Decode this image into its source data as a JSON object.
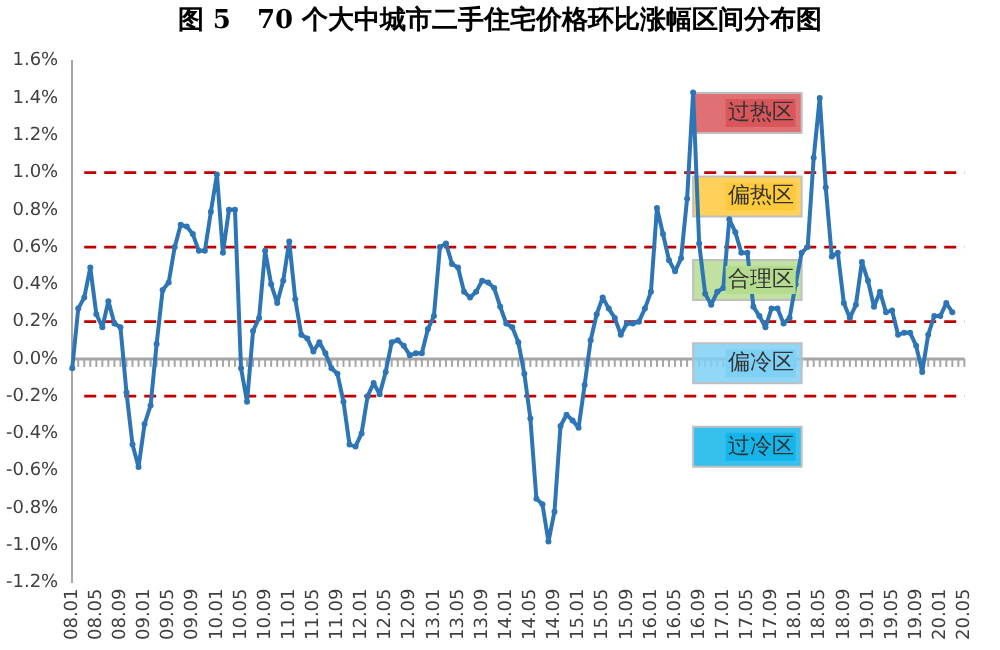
{
  "chart_data": {
    "type": "line",
    "title": "图 5　70 个大中城市二手住宅价格环比涨幅区间分布图",
    "categories": [
      "08.01",
      null,
      null,
      null,
      "08.05",
      null,
      null,
      null,
      "08.09",
      null,
      null,
      null,
      "09.01",
      null,
      null,
      null,
      "09.05",
      null,
      null,
      null,
      "09.09",
      null,
      null,
      null,
      "10.01",
      null,
      null,
      null,
      "10.05",
      null,
      null,
      null,
      "10.09",
      null,
      null,
      null,
      "11.01",
      null,
      null,
      null,
      "11.05",
      null,
      null,
      null,
      "11.09",
      null,
      null,
      null,
      "12.01",
      null,
      null,
      null,
      "12.05",
      null,
      null,
      null,
      "12.09",
      null,
      null,
      null,
      "13.01",
      null,
      null,
      null,
      "13.05",
      null,
      null,
      null,
      "13.09",
      null,
      null,
      null,
      "14.01",
      null,
      null,
      null,
      "14.05",
      null,
      null,
      null,
      "14.09",
      null,
      null,
      null,
      "15.01",
      null,
      null,
      null,
      "15.05",
      null,
      null,
      null,
      "15.09",
      null,
      null,
      null,
      "16.01",
      null,
      null,
      null,
      "16.05",
      null,
      null,
      null,
      "16.09",
      null,
      null,
      null,
      "17.01",
      null,
      null,
      null,
      "17.05",
      null,
      null,
      null,
      "17.09",
      null,
      null,
      null,
      "18.01",
      null,
      null,
      null,
      "18.05",
      null,
      null,
      null,
      "18.09",
      null,
      null,
      null,
      "19.01",
      null,
      null,
      null,
      "19.05",
      null,
      null,
      null,
      "19.09",
      null,
      null,
      null,
      "20.01",
      null,
      null,
      null,
      "20.05"
    ],
    "series": [
      {
        "color": "#2e75b6",
        "values": [
          -0.05,
          0.27,
          0.33,
          0.49,
          0.24,
          0.17,
          0.31,
          0.19,
          0.17,
          -0.18,
          -0.46,
          -0.58,
          -0.35,
          -0.25,
          0.08,
          0.37,
          0.41,
          0.6,
          0.72,
          0.71,
          0.67,
          0.58,
          0.58,
          0.79,
          0.99,
          0.57,
          0.8,
          0.8,
          -0.05,
          -0.23,
          0.15,
          0.22,
          0.58,
          0.4,
          0.3,
          0.42,
          0.63,
          0.32,
          0.13,
          0.11,
          0.04,
          0.09,
          0.03,
          -0.05,
          -0.08,
          -0.23,
          -0.46,
          -0.47,
          -0.4,
          -0.2,
          -0.13,
          -0.19,
          -0.07,
          0.09,
          0.1,
          0.07,
          0.02,
          0.03,
          0.03,
          0.16,
          0.23,
          0.6,
          0.62,
          0.51,
          0.49,
          0.36,
          0.33,
          0.36,
          0.42,
          0.41,
          0.38,
          0.28,
          0.19,
          0.17,
          0.09,
          -0.08,
          -0.32,
          -0.75,
          -0.78,
          -0.98,
          -0.82,
          -0.36,
          -0.3,
          -0.33,
          -0.37,
          -0.14,
          0.1,
          0.24,
          0.33,
          0.27,
          0.22,
          0.13,
          0.19,
          0.19,
          0.2,
          0.27,
          0.36,
          0.81,
          0.67,
          0.53,
          0.47,
          0.54,
          0.86,
          1.43,
          0.62,
          0.35,
          0.29,
          0.36,
          0.38,
          0.75,
          0.68,
          0.57,
          0.57,
          0.28,
          0.23,
          0.17,
          0.27,
          0.27,
          0.19,
          0.22,
          0.4,
          0.57,
          0.6,
          1.08,
          1.4,
          0.92,
          0.55,
          0.57,
          0.3,
          0.22,
          0.29,
          0.52,
          0.42,
          0.28,
          0.36,
          0.25,
          0.26,
          0.13,
          0.14,
          0.14,
          0.07,
          -0.07,
          0.13,
          0.23,
          0.23,
          0.3,
          0.25,
          null,
          null
        ]
      }
    ],
    "ylim": [
      -1.2,
      1.6
    ],
    "yticks": [
      {
        "value": -1.2,
        "label": "-1.2%"
      },
      {
        "value": -1.0,
        "label": "-1.0%"
      },
      {
        "value": -0.8,
        "label": "-0.8%"
      },
      {
        "value": -0.6,
        "label": "-0.6%"
      },
      {
        "value": -0.4,
        "label": "-0.4%"
      },
      {
        "value": -0.2,
        "label": "-0.2%"
      },
      {
        "value": 0,
        "label": "0.0%"
      },
      {
        "value": 0.2,
        "label": "0.2%"
      },
      {
        "value": 0.4,
        "label": "0.4%"
      },
      {
        "value": 0.6,
        "label": "0.6%"
      },
      {
        "value": 0.8,
        "label": "0.8%"
      },
      {
        "value": 1.0,
        "label": "1.0%"
      },
      {
        "value": 1.2,
        "label": "1.2%"
      },
      {
        "value": 1.4,
        "label": "1.4%"
      },
      {
        "value": 1.6,
        "label": "1.6%"
      }
    ],
    "ref_lines": [
      {
        "axis": "y",
        "value": 1.0,
        "color": "#c00000",
        "line_style": "dashed"
      },
      {
        "axis": "y",
        "value": 0.6,
        "color": "#c00000",
        "line_style": "dashed"
      },
      {
        "axis": "y",
        "value": 0.2,
        "color": "#c00000",
        "line_style": "dashed"
      },
      {
        "axis": "y",
        "value": -0.2,
        "color": "#c00000",
        "line_style": "dashed"
      }
    ],
    "annotations": [
      "过热区",
      "偏热区",
      "合理区",
      "偏冷区",
      "过冷区"
    ],
    "grid": false,
    "legend": false,
    "marker": "circle",
    "line_style": "solid"
  }
}
